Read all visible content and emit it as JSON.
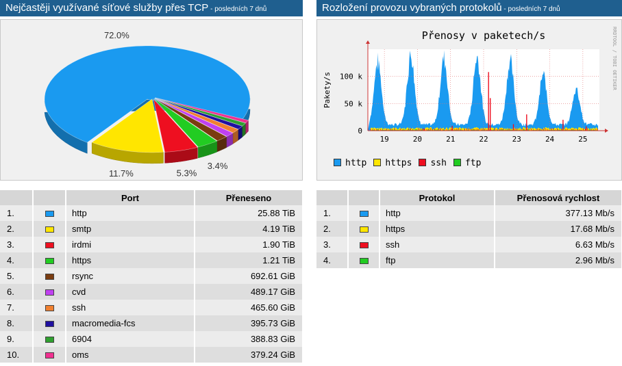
{
  "left_panel": {
    "title": "Nejčastěji využívané síťové služby přes TCP",
    "subtitle": " - posledních 7 dnů"
  },
  "right_panel": {
    "title": "Rozložení provozu vybraných protokolů",
    "subtitle": " - posledních 7 dnů"
  },
  "left_table": {
    "headers": [
      "",
      "",
      "Port",
      "Přeneseno"
    ],
    "rows": [
      {
        "rank": "1.",
        "color": "#1a9af0",
        "name": "http",
        "value": "25.88 TiB"
      },
      {
        "rank": "2.",
        "color": "#ffe600",
        "name": "smtp",
        "value": "4.19 TiB"
      },
      {
        "rank": "3.",
        "color": "#ee0f20",
        "name": "irdmi",
        "value": "1.90 TiB"
      },
      {
        "rank": "4.",
        "color": "#22cc22",
        "name": "https",
        "value": "1.21 TiB"
      },
      {
        "rank": "5.",
        "color": "#7a3c10",
        "name": "rsync",
        "value": "692.61 GiB"
      },
      {
        "rank": "6.",
        "color": "#c040f0",
        "name": "cvd",
        "value": "489.17 GiB"
      },
      {
        "rank": "7.",
        "color": "#f08030",
        "name": "ssh",
        "value": "465.60 GiB"
      },
      {
        "rank": "8.",
        "color": "#2010a0",
        "name": "macromedia-fcs",
        "value": "395.73 GiB"
      },
      {
        "rank": "9.",
        "color": "#30a030",
        "name": "6904",
        "value": "388.83 GiB"
      },
      {
        "rank": "10.",
        "color": "#f03090",
        "name": "oms",
        "value": "379.24 GiB"
      }
    ]
  },
  "right_table": {
    "headers": [
      "",
      "",
      "Protokol",
      "Přenosová rychlost"
    ],
    "rows": [
      {
        "rank": "1.",
        "color": "#1a9af0",
        "name": "http",
        "value": "377.13 Mb/s"
      },
      {
        "rank": "2.",
        "color": "#ffe600",
        "name": "https",
        "value": "17.68 Mb/s"
      },
      {
        "rank": "3.",
        "color": "#ee0f20",
        "name": "ssh",
        "value": "6.63 Mb/s"
      },
      {
        "rank": "4.",
        "color": "#22cc22",
        "name": "ftp",
        "value": "2.96 Mb/s"
      }
    ]
  },
  "chart_data": [
    {
      "type": "pie",
      "slices": [
        {
          "port": "http",
          "value": 72.0,
          "label": "72.0%",
          "color": "#1a9af0"
        },
        {
          "port": "smtp",
          "value": 11.7,
          "label": "11.7%",
          "color": "#ffe600"
        },
        {
          "port": "irdmi",
          "value": 5.3,
          "label": "5.3%",
          "color": "#ee0f20"
        },
        {
          "port": "https",
          "value": 3.4,
          "label": "3.4%",
          "color": "#22cc22"
        },
        {
          "port": "rsync",
          "value": 1.9,
          "label": "",
          "color": "#7a3c10"
        },
        {
          "port": "cvd",
          "value": 1.4,
          "label": "",
          "color": "#c040f0"
        },
        {
          "port": "ssh",
          "value": 1.3,
          "label": "",
          "color": "#f08030"
        },
        {
          "port": "macromedia-fcs",
          "value": 1.1,
          "label": "",
          "color": "#2010a0"
        },
        {
          "port": "6904",
          "value": 1.0,
          "label": "",
          "color": "#30a030"
        },
        {
          "port": "oms",
          "value": 0.9,
          "label": "",
          "color": "#f03090"
        }
      ]
    },
    {
      "type": "area",
      "title": "Přenosy v paketech/s",
      "ylabel": "Pakety/s",
      "watermark": "RRDTOOL / TOBI OETIKER",
      "ylim": [
        0,
        150000
      ],
      "yticks": [
        {
          "value": 0,
          "label": "0"
        },
        {
          "value": 50000,
          "label": "50 k"
        },
        {
          "value": 100000,
          "label": "100 k"
        }
      ],
      "xlim": [
        18.5,
        25.5
      ],
      "xticks": [
        19,
        20,
        21,
        22,
        23,
        24,
        25
      ],
      "day_peaks": [
        {
          "day": 18.8,
          "peak": 120000
        },
        {
          "day": 19.8,
          "peak": 135000
        },
        {
          "day": 20.8,
          "peak": 128000
        },
        {
          "day": 21.8,
          "peak": 130000
        },
        {
          "day": 22.8,
          "peak": 122000
        },
        {
          "day": 23.8,
          "peak": 95000
        },
        {
          "day": 24.8,
          "peak": 70000
        }
      ],
      "series": [
        {
          "name": "http",
          "color": "#1a9af0"
        },
        {
          "name": "https",
          "color": "#ffe600"
        },
        {
          "name": "ssh",
          "color": "#ee0f20"
        },
        {
          "name": "ftp",
          "color": "#22cc22"
        }
      ]
    }
  ]
}
